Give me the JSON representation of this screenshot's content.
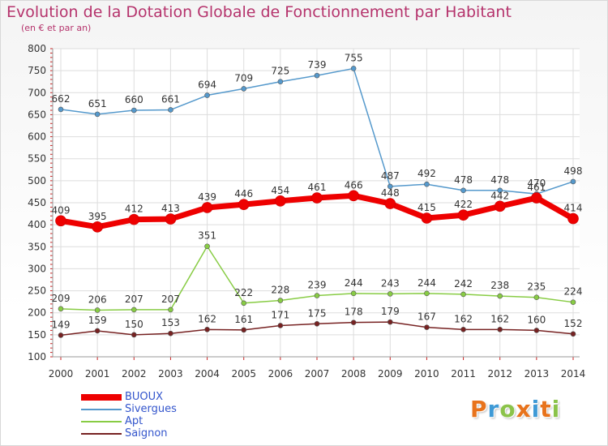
{
  "header": {
    "title": "Evolution de la Dotation Globale de Fonctionnement par Habitant",
    "subtitle": "(en € et par an)"
  },
  "logo": {
    "text": "Proxiti",
    "colors": [
      "#e8731c",
      "#3f9ad6",
      "#8bc34a",
      "#e8731c",
      "#3f9ad6",
      "#e8731c",
      "#8bc34a"
    ]
  },
  "chart_data": {
    "type": "line",
    "title": "Evolution de la Dotation Globale de Fonctionnement par Habitant",
    "subtitle": "(en € et par an)",
    "x": [
      "2000",
      "2001",
      "2002",
      "2003",
      "2004",
      "2005",
      "2006",
      "2007",
      "2008",
      "2009",
      "2010",
      "2011",
      "2012",
      "2013",
      "2014"
    ],
    "ylim": [
      100,
      800
    ],
    "yticks": [
      100,
      150,
      200,
      250,
      300,
      350,
      400,
      450,
      500,
      550,
      600,
      650,
      700,
      750,
      800
    ],
    "grid": true,
    "legend_position": "bottom-left",
    "series": [
      {
        "name": "BUOUX",
        "color": "#ee0000",
        "emphasis": true,
        "values": [
          409,
          395,
          412,
          413,
          439,
          446,
          454,
          461,
          466,
          448,
          415,
          422,
          442,
          461,
          414
        ]
      },
      {
        "name": "Sivergues",
        "color": "#5599cc",
        "emphasis": false,
        "values": [
          662,
          651,
          660,
          661,
          694,
          709,
          725,
          739,
          755,
          487,
          492,
          478,
          478,
          470,
          498
        ]
      },
      {
        "name": "Apt",
        "color": "#88cc44",
        "emphasis": false,
        "values": [
          209,
          206,
          207,
          207,
          351,
          222,
          228,
          239,
          244,
          243,
          244,
          242,
          238,
          235,
          224
        ]
      },
      {
        "name": "Saignon",
        "color": "#772222",
        "emphasis": false,
        "values": [
          149,
          159,
          150,
          153,
          162,
          161,
          171,
          175,
          178,
          179,
          167,
          162,
          162,
          160,
          152
        ]
      }
    ]
  }
}
